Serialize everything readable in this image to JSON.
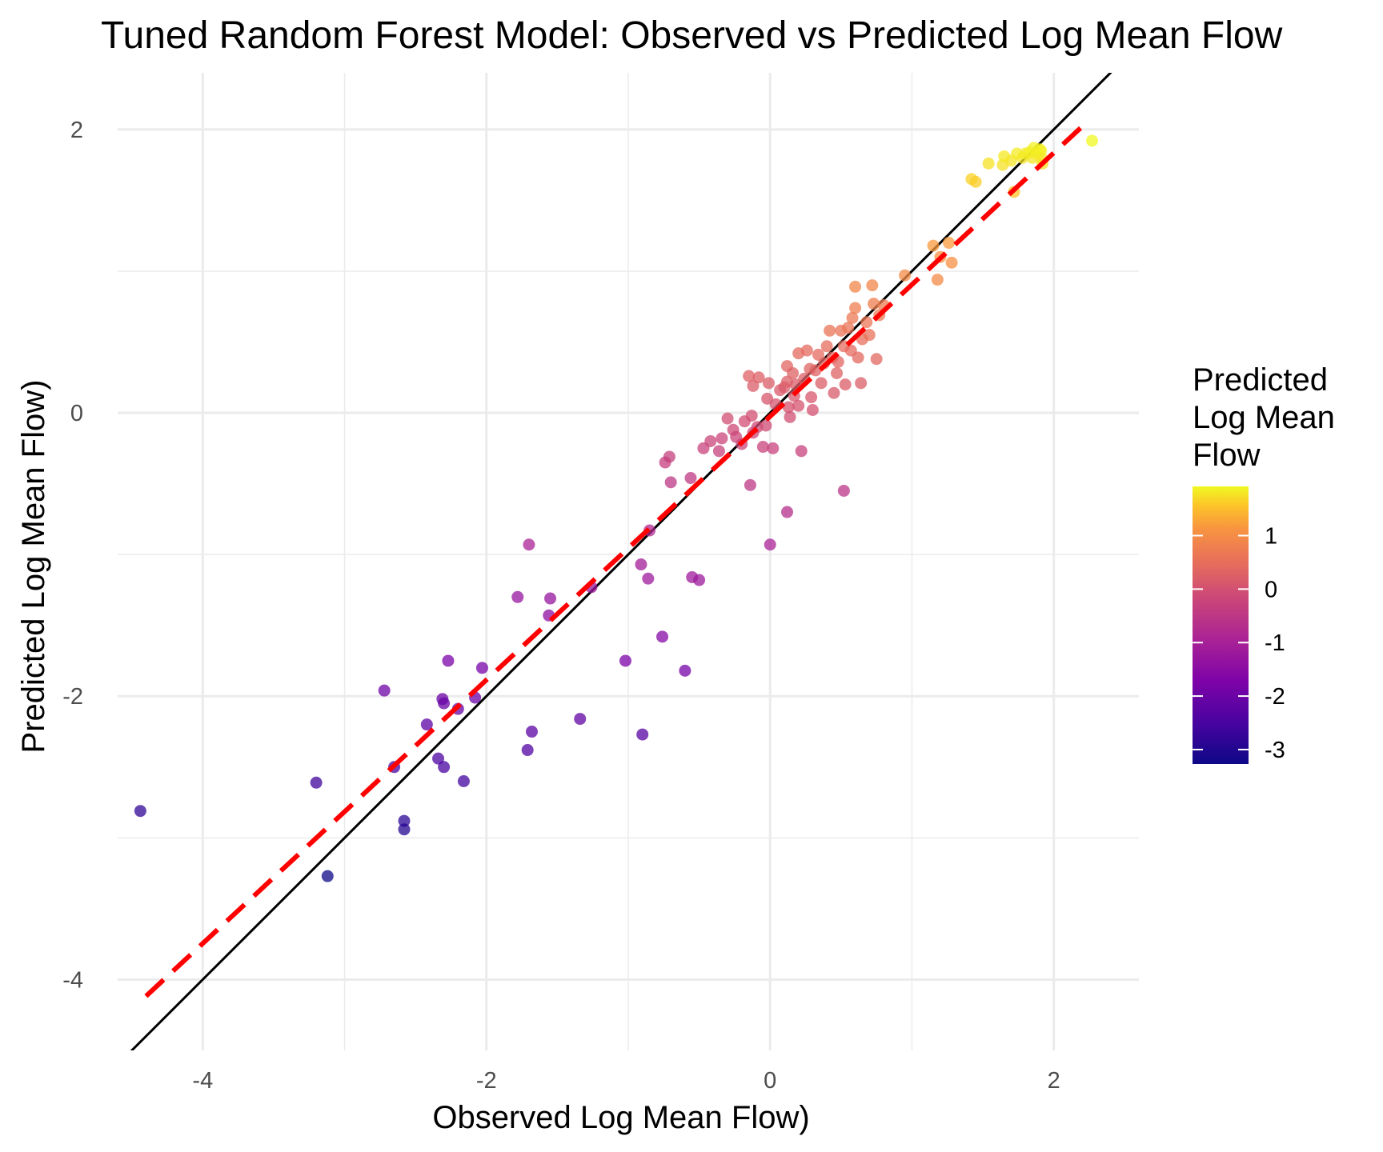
{
  "chart_data": {
    "type": "scatter",
    "title": "Tuned Random Forest Model: Observed vs Predicted Log Mean Flow",
    "xlabel": "Observed Log Mean Flow)",
    "ylabel": "Predicted Log Mean Flow)",
    "xlim": [
      -4.6,
      2.6
    ],
    "ylim": [
      -4.5,
      2.4
    ],
    "x_ticks": [
      -4,
      -2,
      0,
      2
    ],
    "y_ticks": [
      -4,
      -2,
      0,
      2
    ],
    "grid": true,
    "legend": {
      "title_lines": [
        "Predicted",
        "Log Mean",
        "Flow"
      ],
      "position": "right",
      "colorscale": "plasma",
      "range": [
        -3.27,
        1.92
      ],
      "ticks": [
        1,
        0,
        -1,
        -2,
        -3
      ]
    },
    "reference_line": {
      "name": "identity",
      "slope": 1,
      "intercept": 0,
      "color": "#000000"
    },
    "fit_line": {
      "slope": 0.93,
      "intercept": -0.025,
      "x_range": [
        -4.4,
        2.2
      ],
      "color": "#ff0000",
      "dash": true
    },
    "points": [
      [
        -4.44,
        -2.81
      ],
      [
        -3.2,
        -2.61
      ],
      [
        -3.12,
        -3.27
      ],
      [
        -2.72,
        -1.96
      ],
      [
        -2.65,
        -2.5
      ],
      [
        -2.58,
        -2.88
      ],
      [
        -2.58,
        -2.94
      ],
      [
        -2.42,
        -2.2
      ],
      [
        -2.34,
        -2.44
      ],
      [
        -2.31,
        -2.02
      ],
      [
        -2.3,
        -2.5
      ],
      [
        -2.3,
        -2.05
      ],
      [
        -2.27,
        -1.75
      ],
      [
        -2.2,
        -2.09
      ],
      [
        -2.16,
        -2.6
      ],
      [
        -2.08,
        -2.01
      ],
      [
        -2.03,
        -1.8
      ],
      [
        -1.78,
        -1.3
      ],
      [
        -1.71,
        -2.38
      ],
      [
        -1.7,
        -0.93
      ],
      [
        -1.68,
        -2.25
      ],
      [
        -1.56,
        -1.43
      ],
      [
        -1.55,
        -1.31
      ],
      [
        -1.34,
        -2.16
      ],
      [
        -1.26,
        -1.23
      ],
      [
        -1.02,
        -1.75
      ],
      [
        -0.91,
        -1.07
      ],
      [
        -0.9,
        -2.27
      ],
      [
        -0.86,
        -1.17
      ],
      [
        -0.85,
        -0.83
      ],
      [
        -0.76,
        -1.58
      ],
      [
        -0.74,
        -0.35
      ],
      [
        -0.71,
        -0.31
      ],
      [
        -0.7,
        -0.49
      ],
      [
        -0.6,
        -1.82
      ],
      [
        -0.56,
        -0.46
      ],
      [
        -0.55,
        -1.16
      ],
      [
        -0.5,
        -1.18
      ],
      [
        -0.47,
        -0.25
      ],
      [
        -0.42,
        -0.2
      ],
      [
        -0.36,
        -0.27
      ],
      [
        -0.34,
        -0.18
      ],
      [
        -0.3,
        -0.04
      ],
      [
        -0.26,
        -0.12
      ],
      [
        -0.24,
        -0.17
      ],
      [
        -0.2,
        -0.22
      ],
      [
        -0.18,
        -0.06
      ],
      [
        -0.15,
        0.26
      ],
      [
        -0.13,
        -0.02
      ],
      [
        -0.12,
        -0.14
      ],
      [
        -0.14,
        -0.51
      ],
      [
        -0.12,
        0.19
      ],
      [
        -0.09,
        -0.1
      ],
      [
        -0.08,
        0.25
      ],
      [
        -0.05,
        -0.24
      ],
      [
        -0.03,
        -0.09
      ],
      [
        -0.02,
        0.1
      ],
      [
        -0.01,
        0.21
      ],
      [
        0.0,
        -0.93
      ],
      [
        0.02,
        -0.25
      ],
      [
        0.04,
        0.06
      ],
      [
        0.07,
        0.16
      ],
      [
        0.1,
        0.18
      ],
      [
        0.12,
        0.33
      ],
      [
        0.12,
        0.22
      ],
      [
        0.13,
        0.04
      ],
      [
        0.12,
        -0.7
      ],
      [
        0.14,
        -0.03
      ],
      [
        0.16,
        0.28
      ],
      [
        0.17,
        0.12
      ],
      [
        0.18,
        0.2
      ],
      [
        0.2,
        0.05
      ],
      [
        0.2,
        0.42
      ],
      [
        0.22,
        -0.27
      ],
      [
        0.24,
        0.24
      ],
      [
        0.26,
        0.44
      ],
      [
        0.28,
        0.31
      ],
      [
        0.29,
        0.11
      ],
      [
        0.3,
        0.02
      ],
      [
        0.32,
        0.3
      ],
      [
        0.34,
        0.41
      ],
      [
        0.36,
        0.21
      ],
      [
        0.38,
        0.35
      ],
      [
        0.4,
        0.47
      ],
      [
        0.42,
        0.58
      ],
      [
        0.44,
        0.39
      ],
      [
        0.45,
        0.14
      ],
      [
        0.47,
        0.28
      ],
      [
        0.48,
        0.36
      ],
      [
        0.5,
        0.58
      ],
      [
        0.52,
        0.47
      ],
      [
        0.53,
        0.2
      ],
      [
        0.52,
        -0.55
      ],
      [
        0.55,
        0.6
      ],
      [
        0.57,
        0.44
      ],
      [
        0.58,
        0.67
      ],
      [
        0.6,
        0.74
      ],
      [
        0.6,
        0.89
      ],
      [
        0.62,
        0.39
      ],
      [
        0.64,
        0.21
      ],
      [
        0.65,
        0.52
      ],
      [
        0.68,
        0.64
      ],
      [
        0.7,
        0.55
      ],
      [
        0.72,
        0.9
      ],
      [
        0.73,
        0.77
      ],
      [
        0.75,
        0.38
      ],
      [
        0.77,
        0.69
      ],
      [
        0.8,
        0.76
      ],
      [
        0.95,
        0.97
      ],
      [
        1.15,
        1.18
      ],
      [
        1.18,
        0.94
      ],
      [
        1.2,
        1.1
      ],
      [
        1.26,
        1.2
      ],
      [
        1.28,
        1.06
      ],
      [
        1.42,
        1.65
      ],
      [
        1.45,
        1.63
      ],
      [
        1.54,
        1.76
      ],
      [
        1.64,
        1.75
      ],
      [
        1.65,
        1.81
      ],
      [
        1.7,
        1.78
      ],
      [
        1.72,
        1.56
      ],
      [
        1.74,
        1.83
      ],
      [
        1.78,
        1.8
      ],
      [
        1.8,
        1.83
      ],
      [
        1.83,
        1.84
      ],
      [
        1.85,
        1.8
      ],
      [
        1.86,
        1.87
      ],
      [
        1.88,
        1.83
      ],
      [
        1.9,
        1.86
      ],
      [
        1.91,
        1.85
      ],
      [
        1.92,
        1.76
      ],
      [
        1.92,
        1.79
      ],
      [
        2.27,
        1.92
      ]
    ]
  }
}
